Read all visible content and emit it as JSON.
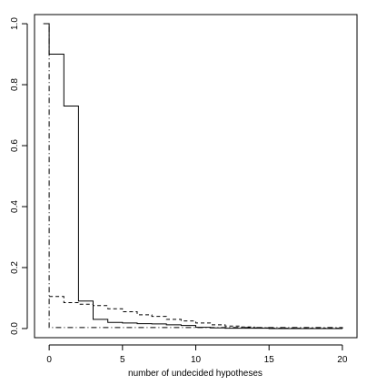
{
  "chart_data": {
    "type": "line",
    "step": true,
    "title": "",
    "xlabel": "number of undecided hypotheses",
    "ylabel": "",
    "xlim": [
      -1,
      21
    ],
    "ylim": [
      -0.03,
      1.03
    ],
    "x_ticks": [
      0,
      5,
      10,
      15,
      20
    ],
    "y_ticks": [
      0.0,
      0.2,
      0.4,
      0.6,
      0.8,
      1.0
    ],
    "x_tick_labels": [
      "0",
      "5",
      "10",
      "15",
      "20"
    ],
    "y_tick_labels": [
      "0.0",
      "0.2",
      "0.4",
      "0.6",
      "0.8",
      "1.0"
    ],
    "grid": false,
    "legend": "none",
    "series": [
      {
        "line_style": "solid",
        "x": [
          -0.4,
          0,
          1,
          2,
          3,
          4,
          5,
          6,
          7,
          8,
          9,
          10,
          11,
          12,
          15,
          20
        ],
        "y": [
          1.0,
          0.9,
          0.73,
          0.09,
          0.03,
          0.02,
          0.018,
          0.016,
          0.015,
          0.012,
          0.01,
          0.004,
          0.002,
          0.001,
          0.0,
          0.0
        ]
      },
      {
        "line_style": "dashed",
        "x": [
          0,
          1,
          2,
          3,
          4,
          5,
          6,
          7,
          8,
          9,
          10,
          11,
          12,
          13,
          14,
          15,
          20
        ],
        "y": [
          0.105,
          0.085,
          0.08,
          0.075,
          0.065,
          0.055,
          0.045,
          0.04,
          0.03,
          0.025,
          0.018,
          0.012,
          0.008,
          0.005,
          0.002,
          0.001,
          0.0
        ]
      },
      {
        "line_style": "dotdash",
        "x": [
          -0.05,
          0,
          20
        ],
        "y": [
          1.0,
          0.003,
          0.0
        ]
      }
    ]
  }
}
